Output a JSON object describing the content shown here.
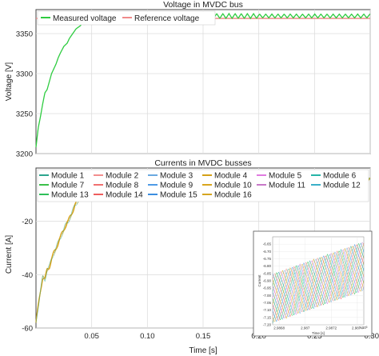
{
  "chart_data": [
    {
      "type": "line",
      "title": "Voltage in MVDC bus",
      "xlabel": "",
      "ylabel": "Voltage [V]",
      "xlim": [
        0,
        0.3
      ],
      "ylim": [
        3200,
        3380
      ],
      "yticks": [
        3200,
        3250,
        3300,
        3350
      ],
      "grid": true,
      "legend_position": "top-left",
      "series": [
        {
          "name": "Measured voltage",
          "color": "#2ecc40",
          "x": [
            0,
            0.002,
            0.004,
            0.006,
            0.008,
            0.01,
            0.012,
            0.014,
            0.016,
            0.018,
            0.02,
            0.022,
            0.025,
            0.028,
            0.03,
            0.033,
            0.036,
            0.04,
            0.043,
            0.046,
            0.049,
            0.052,
            0.055,
            0.06,
            0.065,
            0.07
          ],
          "y": [
            3208,
            3232,
            3246,
            3262,
            3276,
            3280,
            3290,
            3300,
            3306,
            3312,
            3320,
            3326,
            3334,
            3338,
            3344,
            3350,
            3356,
            3360,
            3362,
            3366,
            3368,
            3370,
            3373,
            3374,
            3374,
            3373
          ],
          "steady_state": 3372,
          "ripple_amplitude": 3,
          "ripple_period": 0.0055
        },
        {
          "name": "Reference voltage",
          "color": "#f08a8a",
          "x": [
            0,
            0.3
          ],
          "y": [
            3369,
            3369
          ]
        }
      ]
    },
    {
      "type": "line",
      "title": "Currents in MVDC busses",
      "xlabel": "Time [s]",
      "ylabel": "Current [A]",
      "xlim": [
        0,
        0.3
      ],
      "ylim": [
        -60,
        0
      ],
      "xticks": [
        0.05,
        0.1,
        0.15,
        0.2,
        0.25,
        0.3
      ],
      "xticklabels": [
        "0.05",
        "0.10",
        "0.15",
        "0.20",
        "0.25",
        "0.30"
      ],
      "yticks": [
        -60,
        -40,
        -20
      ],
      "grid": true,
      "legend_position": "top",
      "series": [
        {
          "name": "Module 1",
          "color": "#2ca58d"
        },
        {
          "name": "Module 2",
          "color": "#f28e8e"
        },
        {
          "name": "Module 3",
          "color": "#6aa9e0"
        },
        {
          "name": "Module 4",
          "color": "#d4a017"
        },
        {
          "name": "Module 5",
          "color": "#e07be0"
        },
        {
          "name": "Module 6",
          "color": "#26b5a8"
        },
        {
          "name": "Module 7",
          "color": "#3cc04a"
        },
        {
          "name": "Module 8",
          "color": "#f07070"
        },
        {
          "name": "Module 9",
          "color": "#4f9be6"
        },
        {
          "name": "Module 10",
          "color": "#d9a61e"
        },
        {
          "name": "Module 11",
          "color": "#c878c8"
        },
        {
          "name": "Module 12",
          "color": "#3ab0c8"
        },
        {
          "name": "Module 13",
          "color": "#2fbf5a"
        },
        {
          "name": "Module 14",
          "color": "#ef5d5d"
        },
        {
          "name": "Module 15",
          "color": "#3b8ee0"
        },
        {
          "name": "Module 16",
          "color": "#d6a520"
        }
      ],
      "aggregate_trace": {
        "x": [
          0,
          0.002,
          0.004,
          0.006,
          0.008,
          0.01,
          0.012,
          0.015,
          0.018,
          0.02,
          0.023,
          0.026,
          0.029,
          0.032,
          0.035,
          0.038,
          0.041,
          0.044,
          0.047,
          0.05,
          0.053,
          0.056,
          0.06,
          0.065,
          0.07
        ],
        "y": [
          -58,
          -52,
          -46,
          -41,
          -42,
          -38,
          -37,
          -33,
          -30,
          -28,
          -25,
          -22,
          -20,
          -17,
          -14,
          -12,
          -10,
          -8.5,
          -7,
          -6,
          -5.5,
          -5,
          -4.8,
          -4.9,
          -4.7
        ],
        "steady_state": -4.7,
        "ripple_amplitude": 1.0,
        "ripple_period": 0.0055
      },
      "inset": {
        "xlabel": "Time [s]",
        "ylabel": "Current",
        "xlim": [
          2.98675,
          2.98745
        ],
        "ylim": [
          -7.2,
          -6.6
        ],
        "xticks": [
          2.9868,
          2.987,
          2.9872,
          2.9874
        ],
        "xticklabels": [
          "2.9868",
          "2.987",
          "2.9872",
          "2.9874"
        ],
        "yticks": [
          -7.2,
          -7.15,
          -7.1,
          -7.05,
          -7.0,
          -6.95,
          -6.9,
          -6.85,
          -6.8,
          -6.75,
          -6.7,
          -6.65
        ],
        "yticklabels": [
          "-7.20",
          "-7.15",
          "-7.10",
          "-7.05",
          "-7.00",
          "-6.95",
          "-6.90",
          "-6.85",
          "-6.80",
          "-6.75",
          "-6.70",
          "-6.65"
        ],
        "x_multiplier_label": "× 10³",
        "triangle_wave_center_start": -7.02,
        "triangle_wave_center_end": -6.8,
        "triangle_wave_amplitude": 0.17,
        "triangle_wave_period": 0.00024
      }
    }
  ]
}
